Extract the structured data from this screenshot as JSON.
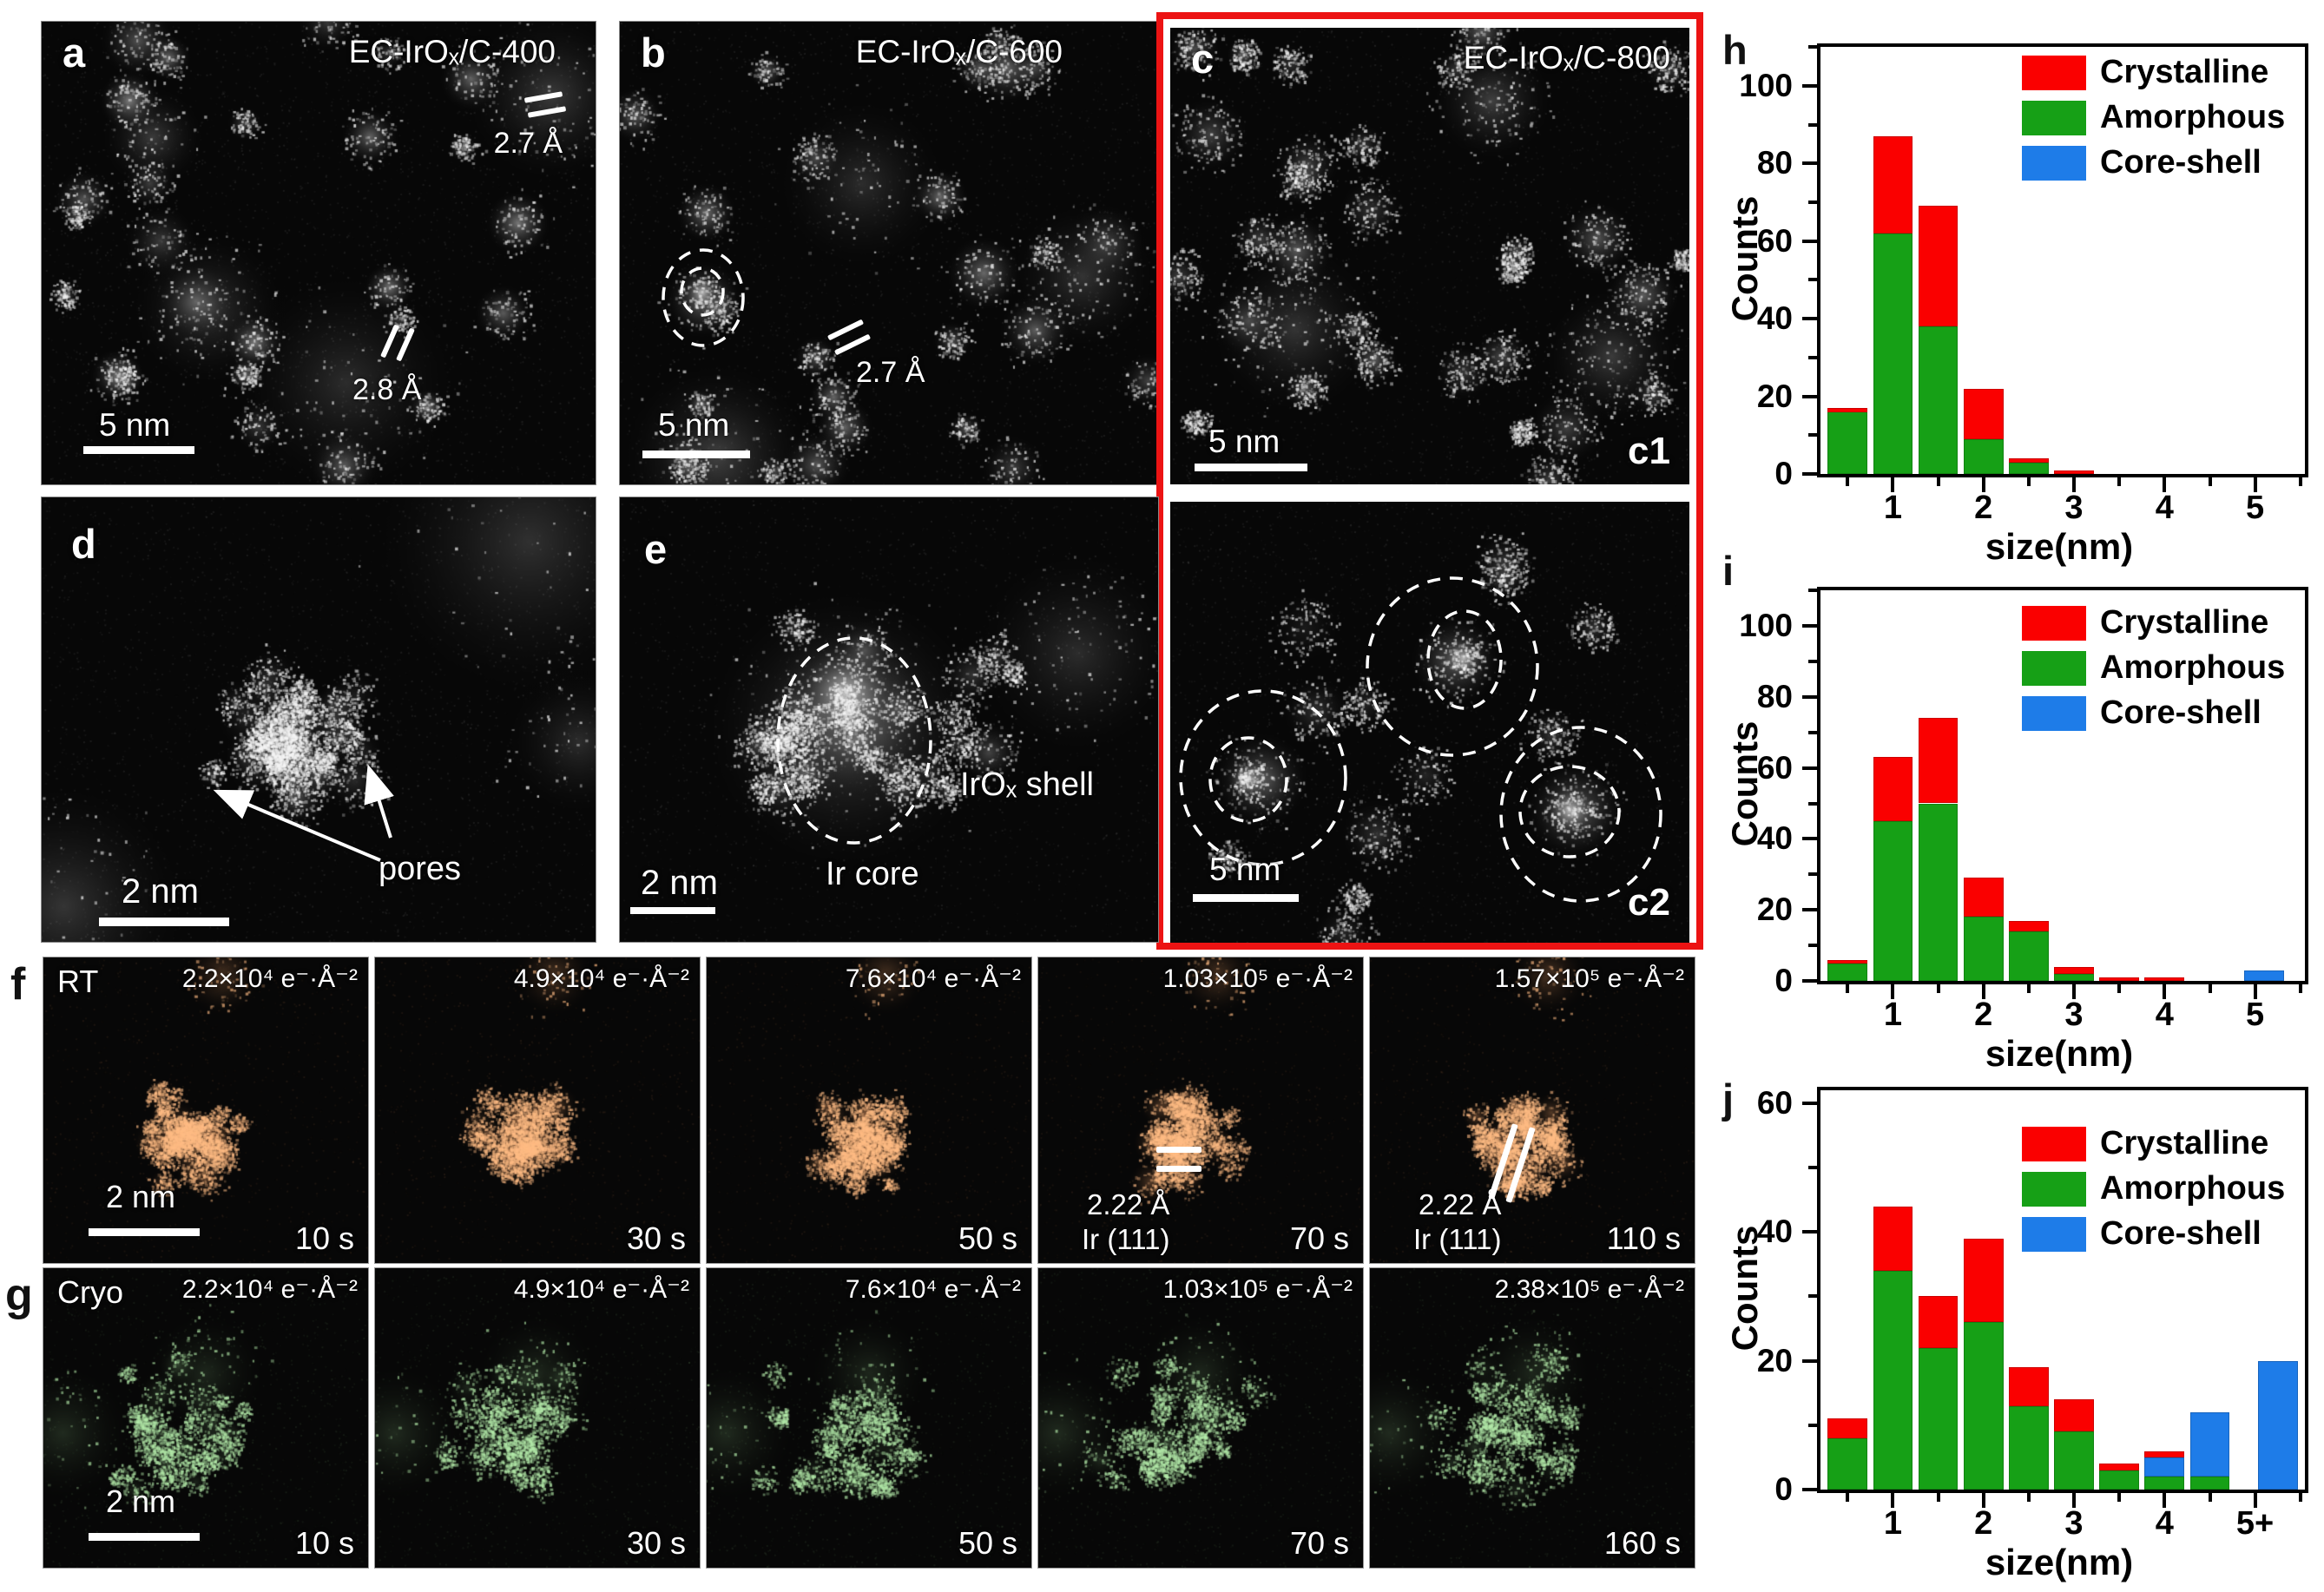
{
  "panels": {
    "a": {
      "letter": "a",
      "title": "EC-IrOₓ/C-400",
      "lattice_top": "2.7 Å",
      "lattice_mid": "2.8 Å",
      "scalebar": "5 nm"
    },
    "b": {
      "letter": "b",
      "title": "EC-IrOₓ/C-600",
      "lattice": "2.7 Å",
      "scalebar": "5 nm"
    },
    "c": {
      "letter": "c",
      "title": "EC-IrOₓ/C-800",
      "sub_top": "c1",
      "sub_bottom": "c2",
      "scalebar_top": "5 nm",
      "scalebar_bottom": "5 nm"
    },
    "d": {
      "letter": "d",
      "annotation": "pores",
      "scalebar": "2 nm"
    },
    "e": {
      "letter": "e",
      "shell_label": "IrOₓ shell",
      "core_label": "Ir core",
      "scalebar": "2 nm"
    }
  },
  "rows": {
    "f": {
      "letter": "f",
      "corner": "RT",
      "scalebar": "2 nm",
      "frames": [
        {
          "dose": "2.2×10⁴ e⁻·Å⁻²",
          "time": "10 s"
        },
        {
          "dose": "4.9×10⁴ e⁻·Å⁻²",
          "time": "30 s"
        },
        {
          "dose": "7.6×10⁴ e⁻·Å⁻²",
          "time": "50 s"
        },
        {
          "dose": "1.03×10⁵ e⁻·Å⁻²",
          "time": "70 s",
          "lattice": "2.22 Å",
          "plane": "Ir (111)",
          "mark": "horizontal"
        },
        {
          "dose": "1.57×10⁵ e⁻·Å⁻²",
          "time": "110 s",
          "lattice": "2.22 Å",
          "plane": "Ir (111)",
          "mark": "slanted"
        }
      ]
    },
    "g": {
      "letter": "g",
      "corner": "Cryo",
      "scalebar": "2 nm",
      "frames": [
        {
          "dose": "2.2×10⁴ e⁻·Å⁻²",
          "time": "10 s"
        },
        {
          "dose": "4.9×10⁴ e⁻·Å⁻²",
          "time": "30 s"
        },
        {
          "dose": "7.6×10⁴ e⁻·Å⁻²",
          "time": "50 s"
        },
        {
          "dose": "1.03×10⁵ e⁻·Å⁻²",
          "time": "70 s"
        },
        {
          "dose": "2.38×10⁵ e⁻·Å⁻²",
          "time": "160 s"
        }
      ]
    }
  },
  "chart_data": [
    {
      "panel_letter": "h",
      "type": "bar",
      "stacked": true,
      "xlabel": "size(nm)",
      "ylabel": "Counts",
      "xlim": [
        0.2,
        5.55
      ],
      "ylim": [
        0,
        110
      ],
      "yticks": [
        0,
        20,
        40,
        60,
        80,
        100
      ],
      "xticks": [
        1,
        2,
        3,
        4,
        5
      ],
      "xtick_labels": [
        "1",
        "2",
        "3",
        "4",
        "5"
      ],
      "x": [
        0.5,
        1,
        1.5,
        2,
        2.5,
        3
      ],
      "series": [
        {
          "name": "Amorphous",
          "color": "#16a016",
          "values": [
            16,
            62,
            38,
            9,
            3,
            0
          ]
        },
        {
          "name": "Core-shell",
          "color": "#1e7ce8",
          "values": [
            0,
            0,
            0,
            0,
            0,
            0
          ]
        },
        {
          "name": "Crystalline",
          "color": "#fa0000",
          "values": [
            1,
            25,
            31,
            13,
            1,
            1
          ]
        }
      ],
      "legend": [
        "Crystalline",
        "Amorphous",
        "Core-shell"
      ],
      "legend_position": "top-right",
      "grid": false
    },
    {
      "panel_letter": "i",
      "type": "bar",
      "stacked": true,
      "xlabel": "size(nm)",
      "ylabel": "Counts",
      "xlim": [
        0.2,
        5.55
      ],
      "ylim": [
        0,
        110
      ],
      "yticks": [
        0,
        20,
        40,
        60,
        80,
        100
      ],
      "xticks": [
        1,
        2,
        3,
        4,
        5
      ],
      "xtick_labels": [
        "1",
        "2",
        "3",
        "4",
        "5"
      ],
      "x": [
        0.5,
        1,
        1.5,
        2,
        2.5,
        3,
        3.5,
        4,
        5.1
      ],
      "series": [
        {
          "name": "Amorphous",
          "color": "#16a016",
          "values": [
            5,
            45,
            50,
            18,
            14,
            2,
            0,
            0,
            0
          ]
        },
        {
          "name": "Core-shell",
          "color": "#1e7ce8",
          "values": [
            0,
            0,
            0,
            0,
            0,
            0,
            0,
            0,
            3
          ]
        },
        {
          "name": "Crystalline",
          "color": "#fa0000",
          "values": [
            1,
            18,
            24,
            11,
            3,
            2,
            1,
            1,
            0
          ]
        }
      ],
      "legend": [
        "Crystalline",
        "Amorphous",
        "Core-shell"
      ],
      "legend_position": "top-right",
      "grid": false
    },
    {
      "panel_letter": "j",
      "type": "bar",
      "stacked": true,
      "xlabel": "size(nm)",
      "ylabel": "Counts",
      "xlim": [
        0.2,
        5.55
      ],
      "ylim": [
        0,
        62
      ],
      "yticks": [
        0,
        20,
        40,
        60
      ],
      "xticks": [
        1,
        2,
        3,
        4,
        5
      ],
      "xtick_labels": [
        "1",
        "2",
        "3",
        "4",
        "5+"
      ],
      "x": [
        0.5,
        1,
        1.5,
        2,
        2.5,
        3,
        3.5,
        4,
        4.5,
        5.25
      ],
      "series": [
        {
          "name": "Amorphous",
          "color": "#16a016",
          "values": [
            8,
            34,
            22,
            26,
            13,
            9,
            3,
            2,
            2,
            0
          ]
        },
        {
          "name": "Core-shell",
          "color": "#1e7ce8",
          "values": [
            0,
            0,
            0,
            0,
            0,
            0,
            0,
            3,
            10,
            20
          ]
        },
        {
          "name": "Crystalline",
          "color": "#fa0000",
          "values": [
            3,
            10,
            8,
            13,
            6,
            5,
            1,
            1,
            0,
            0
          ]
        }
      ],
      "legend": [
        "Crystalline",
        "Amorphous",
        "Core-shell"
      ],
      "legend_position": "top-right",
      "grid": false
    }
  ]
}
